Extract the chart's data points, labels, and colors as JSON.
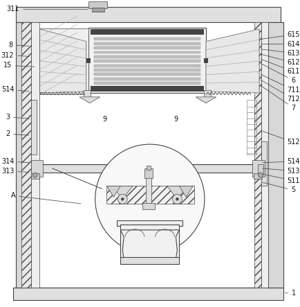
{
  "bg_color": "#ffffff",
  "line_color": "#444444",
  "label_color": "#111111",
  "label_fontsize": 7.0,
  "fig_width": 4.35,
  "fig_height": 4.43,
  "dpi": 100
}
